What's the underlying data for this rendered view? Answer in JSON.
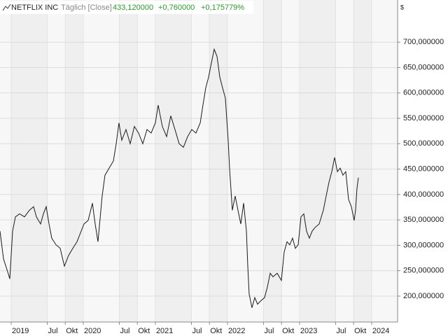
{
  "chart_data": {
    "type": "line",
    "title": "NETFLIX INC",
    "subtitle": "Täglich [Close]",
    "last_value": "433,120000",
    "change": "+0,760000",
    "change_percent": "+0,175779%",
    "y_unit": "$",
    "x": [
      2018.845,
      2018.894,
      2018.942,
      2018.981,
      2019.02,
      2019.059,
      2019.117,
      2019.185,
      2019.253,
      2019.311,
      2019.35,
      2019.408,
      2019.447,
      2019.486,
      2019.525,
      2019.563,
      2019.622,
      2019.68,
      2019.738,
      2019.796,
      2019.855,
      2019.913,
      2019.971,
      2020.01,
      2020.068,
      2020.127,
      2020.165,
      2020.204,
      2020.262,
      2020.301,
      2020.359,
      2020.418,
      2020.457,
      2020.495,
      2020.534,
      2020.593,
      2020.651,
      2020.709,
      2020.767,
      2020.826,
      2020.884,
      2020.942,
      2021.0,
      2021.039,
      2021.097,
      2021.156,
      2021.214,
      2021.272,
      2021.33,
      2021.389,
      2021.447,
      2021.505,
      2021.563,
      2021.622,
      2021.66,
      2021.699,
      2021.738,
      2021.777,
      2021.816,
      2021.855,
      2021.894,
      2021.932,
      2021.971,
      2022.01,
      2022.029,
      2022.068,
      2022.107,
      2022.146,
      2022.185,
      2022.224,
      2022.263,
      2022.282,
      2022.301,
      2022.34,
      2022.379,
      2022.418,
      2022.457,
      2022.515,
      2022.554,
      2022.593,
      2022.631,
      2022.69,
      2022.748,
      2022.787,
      2022.826,
      2022.864,
      2022.903,
      2022.942,
      2022.981,
      2023.02,
      2023.059,
      2023.097,
      2023.136,
      2023.175,
      2023.214,
      2023.272,
      2023.33,
      2023.369,
      2023.408,
      2023.447,
      2023.486,
      2023.525,
      2023.563,
      2023.602,
      2023.641,
      2023.68,
      2023.719,
      2023.757,
      2023.777,
      2023.796,
      2023.816
    ],
    "series": [
      {
        "name": "NETFLIX INC",
        "color": "#1a1a1a",
        "values": [
          328,
          273,
          252,
          234,
          328,
          356,
          362,
          356,
          369,
          376,
          356,
          342,
          362,
          376,
          342,
          314,
          301,
          294,
          259,
          280,
          294,
          307,
          328,
          342,
          349,
          383,
          342,
          307,
          397,
          438,
          452,
          466,
          500,
          541,
          507,
          528,
          500,
          534,
          521,
          500,
          528,
          521,
          541,
          576,
          534,
          514,
          555,
          528,
          500,
          493,
          514,
          528,
          521,
          541,
          576,
          610,
          631,
          659,
          686,
          672,
          631,
          610,
          590,
          507,
          452,
          369,
          397,
          369,
          342,
          383,
          328,
          259,
          204,
          177,
          197,
          184,
          190,
          197,
          218,
          245,
          238,
          245,
          231,
          287,
          307,
          301,
          314,
          294,
          301,
          356,
          362,
          328,
          314,
          328,
          335,
          342,
          369,
          397,
          424,
          445,
          473,
          445,
          452,
          438,
          445,
          390,
          376,
          349,
          369,
          411,
          433.12
        ]
      }
    ],
    "xlim": [
      2018.845,
      2024.36
    ],
    "ylim": [
      149,
      783
    ],
    "xticks": [
      {
        "value": 2019,
        "label": "2019"
      },
      {
        "value": 2019.5,
        "label": "Jul"
      },
      {
        "value": 2019.75,
        "label": "Okt"
      },
      {
        "value": 2020,
        "label": "2020"
      },
      {
        "value": 2020.5,
        "label": "Jul"
      },
      {
        "value": 2020.75,
        "label": "Okt"
      },
      {
        "value": 2021,
        "label": "2021"
      },
      {
        "value": 2021.5,
        "label": "Jul"
      },
      {
        "value": 2021.75,
        "label": "Okt"
      },
      {
        "value": 2022,
        "label": "2022"
      },
      {
        "value": 2022.5,
        "label": "Jul"
      },
      {
        "value": 2022.75,
        "label": "Okt"
      },
      {
        "value": 2023,
        "label": "2023"
      },
      {
        "value": 2023.5,
        "label": "Jul"
      },
      {
        "value": 2023.75,
        "label": "Okt"
      },
      {
        "value": 2024,
        "label": "2024"
      }
    ],
    "yticks": [
      {
        "value": 200,
        "label": "200,000000"
      },
      {
        "value": 250,
        "label": "250,000000"
      },
      {
        "value": 300,
        "label": "300,000000"
      },
      {
        "value": 350,
        "label": "350,000000"
      },
      {
        "value": 400,
        "label": "400,000000"
      },
      {
        "value": 450,
        "label": "450,000000"
      },
      {
        "value": 500,
        "label": "500,000000"
      },
      {
        "value": 550,
        "label": "550,000000"
      },
      {
        "value": 600,
        "label": "600,000000"
      },
      {
        "value": 650,
        "label": "650,000000"
      },
      {
        "value": 700,
        "label": "700,000000"
      }
    ],
    "grid": true
  }
}
